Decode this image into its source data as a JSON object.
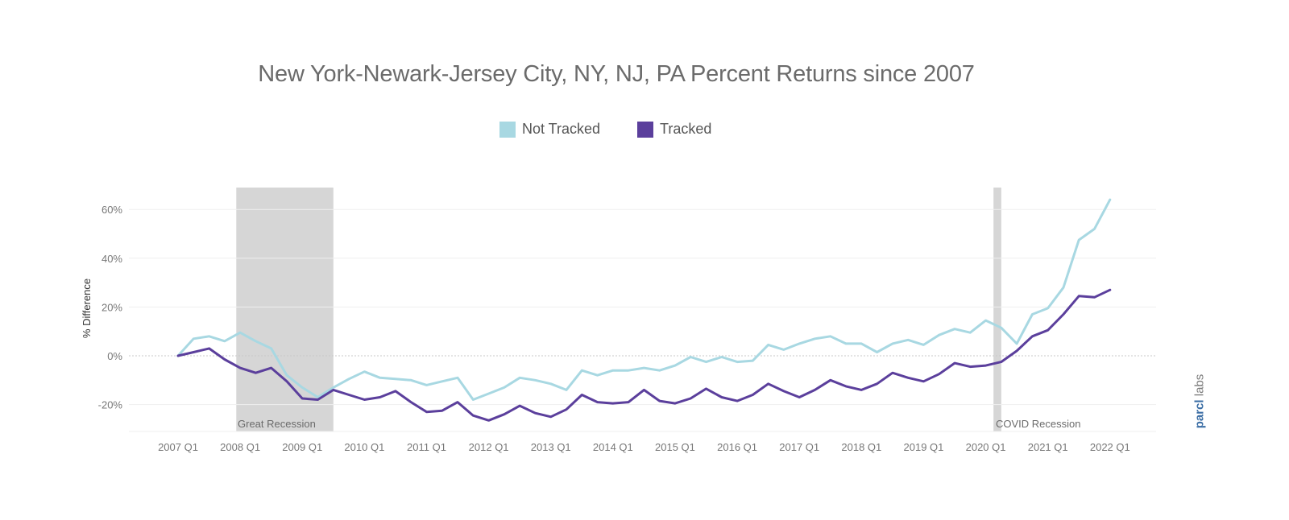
{
  "chart_data": {
    "type": "line",
    "title": "New York-Newark-Jersey City, NY, NJ, PA Percent Returns since 2007",
    "ylabel": "% Difference",
    "xlabel": "",
    "ylim": [
      -31,
      66
    ],
    "yticks": [
      60,
      40,
      20,
      0,
      -20
    ],
    "ytick_labels": [
      "60%",
      "40%",
      "20%",
      "0%",
      "-20%"
    ],
    "xtick_labels": [
      "2007 Q1",
      "2008 Q1",
      "2009 Q1",
      "2010 Q1",
      "2011 Q1",
      "2012 Q1",
      "2013 Q1",
      "2014 Q1",
      "2015 Q1",
      "2016 Q1",
      "2017 Q1",
      "2018 Q1",
      "2019 Q1",
      "2020 Q1",
      "2021 Q1",
      "2022 Q1"
    ],
    "legend_position": "top-center",
    "grid": true,
    "shaded_regions": [
      {
        "label": "Great Recession",
        "start": 3.75,
        "end": 10.0
      },
      {
        "label": "COVID Recession",
        "start": 52.5,
        "end": 53.0
      }
    ],
    "series": [
      {
        "name": "Not Tracked",
        "color": "#a8d8e2",
        "values": [
          0,
          7,
          8,
          6,
          9.5,
          6,
          3,
          -8,
          -13,
          -17,
          -13,
          -9.5,
          -6.5,
          -9,
          -9.5,
          -10,
          -12,
          -10.5,
          -9,
          -18,
          -15.5,
          -13,
          -9,
          -10,
          -11.5,
          -14,
          -6,
          -8,
          -6,
          -6,
          -5,
          -6,
          -4,
          -0.5,
          -2.5,
          -0.5,
          -2.5,
          -2,
          4.5,
          2.5,
          5,
          7,
          8,
          5,
          5,
          1.5,
          5,
          6.5,
          4.5,
          8.5,
          11,
          9.5,
          14.5,
          11.5,
          5,
          17,
          19.5,
          28,
          47.5,
          52,
          64
        ]
      },
      {
        "name": "Tracked",
        "color": "#5b3f9c",
        "values": [
          0,
          1.5,
          3,
          -1.5,
          -5,
          -7,
          -5,
          -10.5,
          -17.5,
          -18,
          -14,
          -16,
          -18,
          -17,
          -14.5,
          -19,
          -23,
          -22.5,
          -19,
          -24.5,
          -26.5,
          -24,
          -20.5,
          -23.5,
          -25,
          -22,
          -16,
          -19,
          -19.5,
          -19,
          -14,
          -18.5,
          -19.5,
          -17.5,
          -13.5,
          -17,
          -18.5,
          -16,
          -11.5,
          -14.5,
          -17,
          -14,
          -10,
          -12.5,
          -14,
          -11.5,
          -7,
          -9,
          -10.5,
          -7.5,
          -3,
          -4.5,
          -4,
          -2.5,
          2,
          8,
          10.5,
          17,
          24.5,
          24,
          27
        ]
      }
    ]
  },
  "legend": {
    "not_tracked": "Not Tracked",
    "tracked": "Tracked"
  },
  "brand": {
    "name": "parcl",
    "suffix": "labs"
  }
}
